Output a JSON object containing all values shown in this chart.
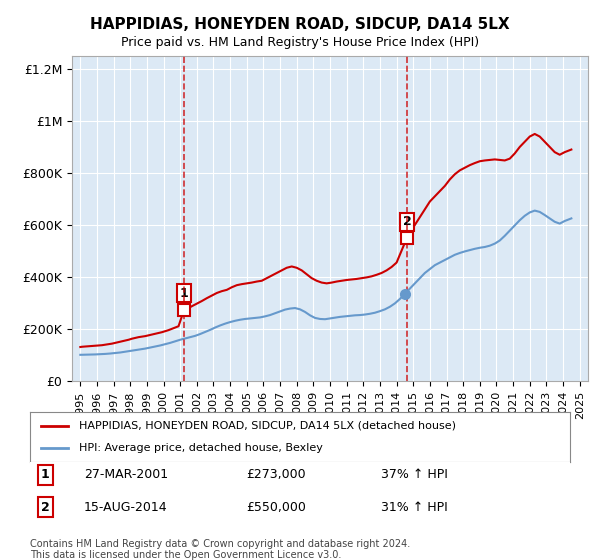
{
  "title": "HAPPIDIAS, HONEYDEN ROAD, SIDCUP, DA14 5LX",
  "subtitle": "Price paid vs. HM Land Registry's House Price Index (HPI)",
  "background_color": "#dce9f5",
  "plot_bg_color": "#dce9f5",
  "red_line_color": "#cc0000",
  "blue_line_color": "#6699cc",
  "dashed_line_color": "#cc0000",
  "legend_label_red": "HAPPIDIAS, HONEYDEN ROAD, SIDCUP, DA14 5LX (detached house)",
  "legend_label_blue": "HPI: Average price, detached house, Bexley",
  "sale1_date": "27-MAR-2001",
  "sale1_price": 273000,
  "sale1_hpi": "37% ↑ HPI",
  "sale1_x": 2001.23,
  "sale2_date": "15-AUG-2014",
  "sale2_price": 550000,
  "sale2_hpi": "31% ↑ HPI",
  "sale2_x": 2014.62,
  "footer": "Contains HM Land Registry data © Crown copyright and database right 2024.\nThis data is licensed under the Open Government Licence v3.0.",
  "ylim": [
    0,
    1250000
  ],
  "xlim": [
    1994.5,
    2025.5
  ],
  "yticks": [
    0,
    200000,
    400000,
    600000,
    800000,
    1000000,
    1200000
  ],
  "ytick_labels": [
    "£0",
    "£200K",
    "£400K",
    "£600K",
    "£800K",
    "£1M",
    "£1.2M"
  ],
  "xticks": [
    1995,
    1996,
    1997,
    1998,
    1999,
    2000,
    2001,
    2002,
    2003,
    2004,
    2005,
    2006,
    2007,
    2008,
    2009,
    2010,
    2011,
    2012,
    2013,
    2014,
    2015,
    2016,
    2017,
    2018,
    2019,
    2020,
    2021,
    2022,
    2023,
    2024,
    2025
  ],
  "red_years": [
    1995.0,
    1995.1,
    1995.3,
    1995.5,
    1995.7,
    1995.9,
    1996.1,
    1996.3,
    1996.5,
    1996.7,
    1996.9,
    1997.1,
    1997.3,
    1997.5,
    1997.7,
    1997.9,
    1998.1,
    1998.3,
    1998.5,
    1998.7,
    1998.9,
    1999.1,
    1999.3,
    1999.5,
    1999.7,
    1999.9,
    2000.1,
    2000.3,
    2000.5,
    2000.7,
    2000.9,
    2001.23,
    2001.5,
    2001.7,
    2002.0,
    2002.3,
    2002.6,
    2002.9,
    2003.2,
    2003.5,
    2003.8,
    2004.1,
    2004.4,
    2004.7,
    2005.0,
    2005.3,
    2005.6,
    2005.9,
    2006.2,
    2006.5,
    2006.8,
    2007.1,
    2007.4,
    2007.7,
    2008.0,
    2008.3,
    2008.6,
    2008.9,
    2009.2,
    2009.5,
    2009.8,
    2010.1,
    2010.4,
    2010.7,
    2011.0,
    2011.3,
    2011.6,
    2011.9,
    2012.2,
    2012.5,
    2012.8,
    2013.1,
    2013.4,
    2013.7,
    2014.0,
    2014.62,
    2014.8,
    2015.1,
    2015.4,
    2015.7,
    2016.0,
    2016.3,
    2016.6,
    2016.9,
    2017.2,
    2017.5,
    2017.8,
    2018.1,
    2018.4,
    2018.7,
    2019.0,
    2019.3,
    2019.6,
    2019.9,
    2020.2,
    2020.5,
    2020.8,
    2021.1,
    2021.4,
    2021.7,
    2022.0,
    2022.3,
    2022.6,
    2022.9,
    2023.2,
    2023.5,
    2023.8,
    2024.1,
    2024.5
  ],
  "red_values": [
    130000,
    131000,
    132000,
    133000,
    134000,
    135000,
    136000,
    137000,
    139000,
    141000,
    143000,
    146000,
    149000,
    152000,
    155000,
    158000,
    162000,
    165000,
    168000,
    170000,
    172000,
    175000,
    178000,
    181000,
    184000,
    187000,
    191000,
    195000,
    200000,
    205000,
    210000,
    273000,
    280000,
    287000,
    297000,
    307000,
    318000,
    328000,
    338000,
    345000,
    350000,
    360000,
    368000,
    372000,
    375000,
    378000,
    382000,
    385000,
    395000,
    405000,
    415000,
    425000,
    435000,
    440000,
    435000,
    425000,
    410000,
    395000,
    385000,
    378000,
    375000,
    378000,
    382000,
    385000,
    388000,
    390000,
    392000,
    395000,
    398000,
    402000,
    408000,
    415000,
    425000,
    438000,
    455000,
    550000,
    575000,
    600000,
    630000,
    660000,
    690000,
    710000,
    730000,
    750000,
    775000,
    795000,
    810000,
    820000,
    830000,
    838000,
    845000,
    848000,
    850000,
    852000,
    850000,
    848000,
    855000,
    875000,
    900000,
    920000,
    940000,
    950000,
    940000,
    920000,
    900000,
    880000,
    870000,
    880000,
    890000
  ],
  "blue_years": [
    1995.0,
    1995.3,
    1995.6,
    1995.9,
    1996.2,
    1996.5,
    1996.8,
    1997.1,
    1997.4,
    1997.7,
    1998.0,
    1998.3,
    1998.6,
    1998.9,
    1999.2,
    1999.5,
    1999.8,
    2000.1,
    2000.4,
    2000.7,
    2001.0,
    2001.3,
    2001.6,
    2001.9,
    2002.2,
    2002.5,
    2002.8,
    2003.1,
    2003.4,
    2003.7,
    2004.0,
    2004.3,
    2004.6,
    2004.9,
    2005.2,
    2005.5,
    2005.8,
    2006.1,
    2006.4,
    2006.7,
    2007.0,
    2007.3,
    2007.6,
    2007.9,
    2008.2,
    2008.5,
    2008.8,
    2009.1,
    2009.4,
    2009.7,
    2010.0,
    2010.3,
    2010.6,
    2010.9,
    2011.2,
    2011.5,
    2011.8,
    2012.1,
    2012.4,
    2012.7,
    2013.0,
    2013.3,
    2013.6,
    2013.9,
    2014.2,
    2014.5,
    2014.8,
    2015.1,
    2015.4,
    2015.7,
    2016.0,
    2016.3,
    2016.6,
    2016.9,
    2017.2,
    2017.5,
    2017.8,
    2018.1,
    2018.4,
    2018.7,
    2019.0,
    2019.3,
    2019.6,
    2019.9,
    2020.2,
    2020.5,
    2020.8,
    2021.1,
    2021.4,
    2021.7,
    2022.0,
    2022.3,
    2022.6,
    2022.9,
    2023.2,
    2023.5,
    2023.8,
    2024.1,
    2024.5
  ],
  "blue_values": [
    100000,
    100500,
    101000,
    101500,
    102500,
    103500,
    105000,
    107000,
    109000,
    112000,
    115000,
    118000,
    121000,
    124000,
    128000,
    132000,
    136000,
    141000,
    146000,
    152000,
    158000,
    163000,
    168000,
    173000,
    180000,
    188000,
    196000,
    205000,
    213000,
    220000,
    226000,
    231000,
    235000,
    238000,
    240000,
    242000,
    244000,
    248000,
    253000,
    260000,
    267000,
    274000,
    278000,
    280000,
    275000,
    265000,
    252000,
    242000,
    238000,
    237000,
    240000,
    243000,
    246000,
    248000,
    250000,
    252000,
    253000,
    255000,
    258000,
    262000,
    268000,
    275000,
    285000,
    298000,
    315000,
    335000,
    355000,
    375000,
    395000,
    415000,
    430000,
    445000,
    455000,
    465000,
    475000,
    485000,
    492000,
    498000,
    503000,
    508000,
    512000,
    515000,
    520000,
    528000,
    540000,
    558000,
    578000,
    598000,
    618000,
    635000,
    648000,
    655000,
    650000,
    638000,
    625000,
    612000,
    605000,
    615000,
    625000
  ]
}
